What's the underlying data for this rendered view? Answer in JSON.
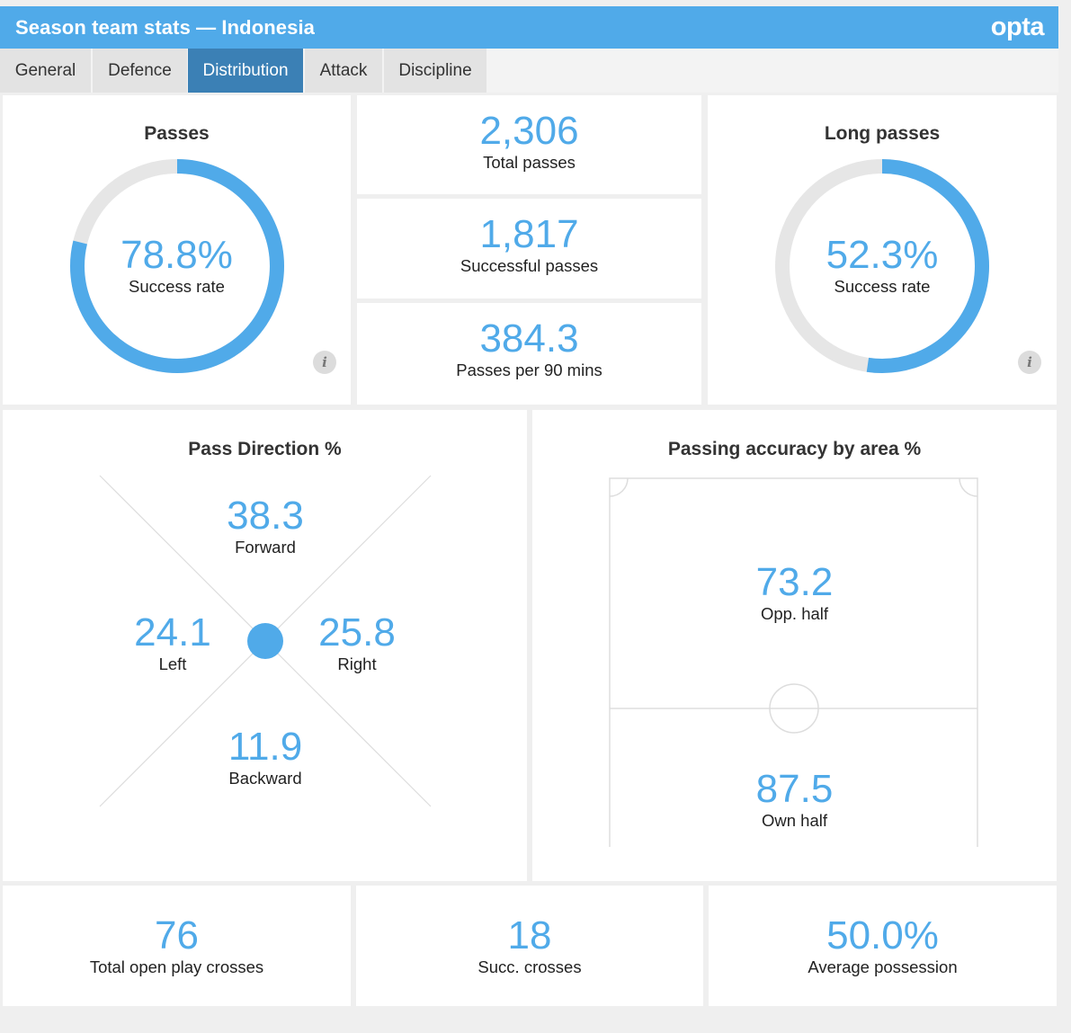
{
  "header": {
    "title": "Season team stats — Indonesia",
    "logo": "opta"
  },
  "tabs": [
    {
      "label": "General",
      "active": false
    },
    {
      "label": "Defence",
      "active": false
    },
    {
      "label": "Distribution",
      "active": true
    },
    {
      "label": "Attack",
      "active": false
    },
    {
      "label": "Discipline",
      "active": false
    }
  ],
  "passes": {
    "title": "Passes",
    "value": "78.8%",
    "label": "Success rate",
    "fraction": 0.788
  },
  "totals": {
    "total_passes": {
      "value": "2,306",
      "label": "Total passes"
    },
    "successful_passes": {
      "value": "1,817",
      "label": "Successful passes"
    },
    "per90": {
      "value": "384.3",
      "label": "Passes per 90 mins"
    }
  },
  "long_passes": {
    "title": "Long passes",
    "value": "52.3%",
    "label": "Success rate",
    "fraction": 0.523
  },
  "info_icon": "i",
  "pass_direction": {
    "title": "Pass Direction %",
    "forward": {
      "value": "38.3",
      "label": "Forward"
    },
    "left": {
      "value": "24.1",
      "label": "Left"
    },
    "right": {
      "value": "25.8",
      "label": "Right"
    },
    "backward": {
      "value": "11.9",
      "label": "Backward"
    }
  },
  "accuracy_area": {
    "title": "Passing accuracy by area %",
    "opp_half": {
      "value": "73.2",
      "label": "Opp. half"
    },
    "own_half": {
      "value": "87.5",
      "label": "Own half"
    }
  },
  "bottom": {
    "crosses": {
      "value": "76",
      "label": "Total open play crosses"
    },
    "succ_crosses": {
      "value": "18",
      "label": "Succ. crosses"
    },
    "possession": {
      "value": "50.0%",
      "label": "Average possession"
    }
  },
  "colors": {
    "accent": "#50aae9",
    "tab_active": "#3b80b5",
    "track": "#e6e6e6"
  }
}
